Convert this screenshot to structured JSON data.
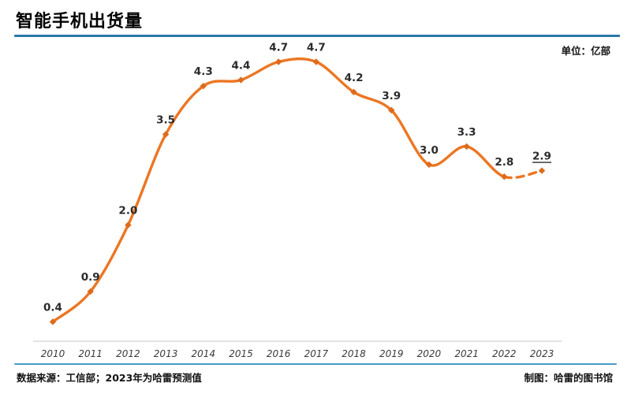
{
  "header": {
    "title": "智能手机出货量",
    "unit_label": "单位：亿部"
  },
  "footer": {
    "source": "数据来源：工信部；2023年为哈雷预测值",
    "credit": "制图：哈雷的图书馆"
  },
  "colors": {
    "line": "#EC7623",
    "marker": "#DD6B1B",
    "title_divider": "#2878A8",
    "footer_divider": "#4A99C4",
    "axis": "#D9D9D9",
    "data_label": "#2B2B2B",
    "tick_label": "#3A3A3A"
  },
  "chart_data": {
    "type": "line",
    "title": "智能手机出货量",
    "unit": "亿部",
    "categories": [
      "2010",
      "2011",
      "2012",
      "2013",
      "2014",
      "2015",
      "2016",
      "2017",
      "2018",
      "2019",
      "2020",
      "2021",
      "2022",
      "2023"
    ],
    "series": [
      {
        "name": "智能手机出货量(亿部)",
        "values": [
          0.4,
          0.9,
          2.0,
          3.5,
          4.3,
          4.4,
          4.7,
          4.7,
          4.2,
          3.9,
          3.0,
          3.3,
          2.8,
          2.9
        ]
      }
    ],
    "xlabel": "",
    "ylabel": "亿部",
    "ylim": [
      0,
      5
    ],
    "grid": false,
    "legend": false,
    "smooth": true,
    "data_labels": true,
    "dashed_segment_from_index": 12,
    "underlined_label_index": 13,
    "notes": "2023为预测值(虚线段、数值加下划线)"
  }
}
